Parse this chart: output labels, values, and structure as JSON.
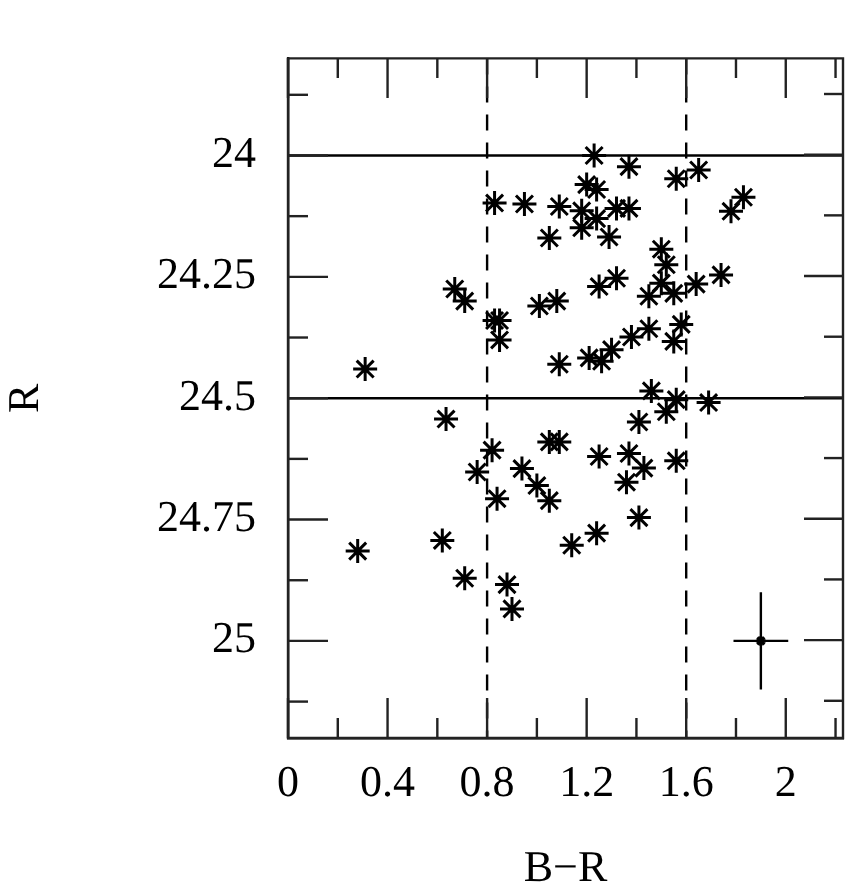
{
  "chart_data": {
    "type": "scatter",
    "xlabel": "B−R",
    "ylabel": "R",
    "marker": "cross",
    "grid": false,
    "legend": false,
    "xlim": [
      0,
      2.23
    ],
    "ylim": [
      25.2,
      23.8
    ],
    "xticks": [
      0,
      {
        "value": 0.2,
        "label": null
      },
      0.4,
      {
        "value": 0.6,
        "label": null
      },
      0.8,
      {
        "value": 1.0,
        "label": null
      },
      1.2,
      {
        "value": 1.4,
        "label": null
      },
      1.6,
      {
        "value": 1.8,
        "label": null
      },
      2,
      {
        "value": 2.2,
        "label": null
      }
    ],
    "yticks": [
      {
        "value": 23.875,
        "label": null
      },
      24,
      {
        "value": 24.125,
        "label": null
      },
      24.25,
      {
        "value": 24.375,
        "label": null
      },
      24.5,
      {
        "value": 24.625,
        "label": null
      },
      24.75,
      {
        "value": 24.875,
        "label": null
      },
      25,
      {
        "value": 25.125,
        "label": null
      }
    ],
    "ref_lines": [
      {
        "axis": "y",
        "value": 24,
        "line_style": "solid",
        "color": "#000000"
      },
      {
        "axis": "y",
        "value": 24.5,
        "line_style": "solid",
        "color": "#000000"
      },
      {
        "axis": "x",
        "value": 0.8,
        "line_style": "dashed",
        "color": "#000000"
      },
      {
        "axis": "x",
        "value": 1.6,
        "line_style": "dashed",
        "color": "#000000"
      }
    ],
    "series": [
      {
        "color": "#000000",
        "x": [
          0.83,
          0.95,
          1.09,
          1.05,
          0.67,
          0.71,
          1.01,
          1.08,
          0.83,
          0.85,
          0.85,
          0.31,
          1.09,
          1.23,
          1.37,
          1.56,
          1.65,
          1.2,
          1.24,
          1.18,
          1.24,
          1.32,
          1.37,
          1.18,
          1.29,
          1.83,
          1.78,
          1.5,
          1.52,
          1.32,
          1.25,
          1.5,
          1.45,
          1.55,
          1.64,
          1.74,
          1.58,
          1.55,
          1.45,
          1.38,
          1.3,
          1.21,
          1.26,
          1.46,
          1.56,
          1.69,
          1.52,
          1.41,
          1.09,
          1.05,
          1.25,
          1.37,
          1.43,
          1.56,
          1.36,
          1.41,
          1.24,
          1.14,
          0.635,
          0.82,
          0.76,
          0.94,
          1.0,
          0.84,
          1.05,
          0.28,
          0.62,
          0.71,
          0.88,
          0.9
        ],
        "values": [
          24.098,
          24.1,
          24.105,
          24.17,
          24.275,
          24.3,
          24.31,
          24.3,
          24.34,
          24.34,
          24.38,
          24.44,
          24.43,
          24.0,
          24.023,
          24.048,
          24.03,
          24.06,
          24.07,
          24.114,
          24.13,
          24.109,
          24.109,
          24.149,
          24.168,
          24.086,
          24.115,
          24.193,
          24.225,
          24.253,
          24.27,
          24.263,
          24.29,
          24.284,
          24.265,
          24.246,
          24.348,
          24.383,
          24.357,
          24.374,
          24.4,
          24.417,
          24.424,
          24.485,
          24.503,
          24.509,
          24.528,
          24.549,
          24.59,
          24.59,
          24.62,
          24.614,
          24.644,
          24.629,
          24.673,
          24.746,
          24.778,
          24.803,
          24.543,
          24.607,
          24.652,
          24.645,
          24.68,
          24.707,
          24.711,
          24.815,
          24.793,
          24.871,
          24.884,
          24.934
        ]
      },
      {
        "color": "#000000",
        "marker": "cross",
        "x": [
          1.9
        ],
        "values": [
          25
        ],
        "errors": [
          0.1
        ],
        "xerrors": [
          0.11
        ]
      }
    ]
  }
}
